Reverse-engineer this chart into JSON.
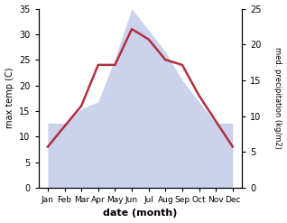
{
  "months": [
    "Jan",
    "Feb",
    "Mar",
    "Apr",
    "May",
    "Jun",
    "Jul",
    "Aug",
    "Sep",
    "Oct",
    "Nov",
    "Dec"
  ],
  "temperature": [
    8.0,
    12.0,
    16.0,
    24.0,
    24.0,
    31.0,
    29.0,
    25.0,
    24.0,
    18.0,
    13.0,
    8.0
  ],
  "precipitation": [
    9,
    9,
    11,
    12,
    18,
    25,
    22,
    19,
    15,
    12,
    9,
    9
  ],
  "temp_ylim": [
    0,
    35
  ],
  "precip_ylim": [
    0,
    25
  ],
  "temp_color": "#b03040",
  "precip_color": "#a0aedd",
  "precip_fill_alpha": 0.55,
  "xlabel": "date (month)",
  "ylabel_left": "max temp (C)",
  "ylabel_right": "med. precipitation (kg/m2)",
  "temp_linewidth": 1.8,
  "fig_width": 3.18,
  "fig_height": 2.47,
  "dpi": 100
}
